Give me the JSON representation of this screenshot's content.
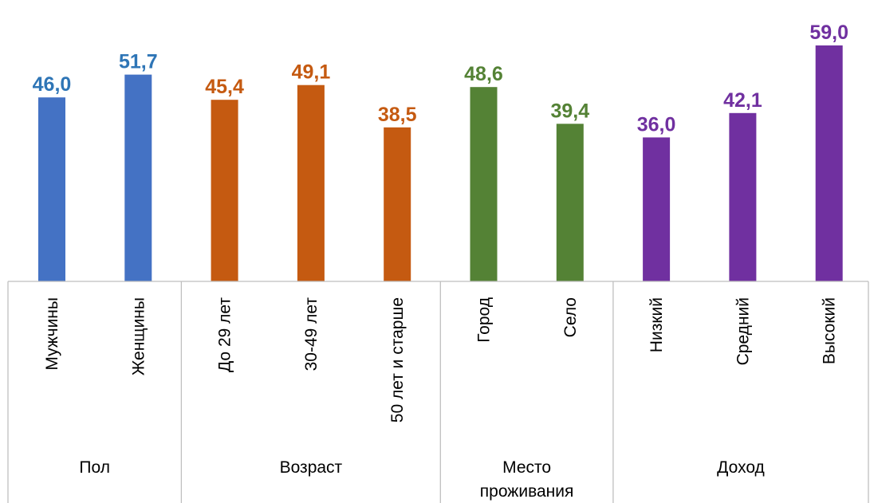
{
  "chart_data": {
    "type": "bar",
    "title": "",
    "xlabel": "",
    "ylabel": "",
    "ylim": [
      0,
      59
    ],
    "grid": false,
    "legend": "none",
    "groups": [
      {
        "label": "Пол",
        "label_lines": [
          "Пол"
        ],
        "color": "#4472C4",
        "label_color": "#2E75B6",
        "categories": [
          "Мужчины",
          "Женщины"
        ],
        "values": [
          46.0,
          51.7
        ],
        "value_labels": [
          "46,0",
          "51,7"
        ]
      },
      {
        "label": "Возраст",
        "label_lines": [
          "Возраст"
        ],
        "color": "#C55A11",
        "label_color": "#C55A11",
        "categories": [
          "До 29 лет",
          "30-49 лет",
          "50 лет и старше"
        ],
        "values": [
          45.4,
          49.1,
          38.5
        ],
        "value_labels": [
          "45,4",
          "49,1",
          "38,5"
        ]
      },
      {
        "label": "Место проживания",
        "label_lines": [
          "Место",
          "проживания"
        ],
        "color": "#548235",
        "label_color": "#548235",
        "categories": [
          "Город",
          "Село"
        ],
        "values": [
          48.6,
          39.4
        ],
        "value_labels": [
          "48,6",
          "39,4"
        ]
      },
      {
        "label": "Доход",
        "label_lines": [
          "Доход"
        ],
        "color": "#7030A0",
        "label_color": "#7030A0",
        "categories": [
          "Низкий",
          "Средний",
          "Высокий"
        ],
        "values": [
          36.0,
          42.1,
          59.0
        ],
        "value_labels": [
          "36,0",
          "42,1",
          "59,0"
        ]
      }
    ]
  }
}
